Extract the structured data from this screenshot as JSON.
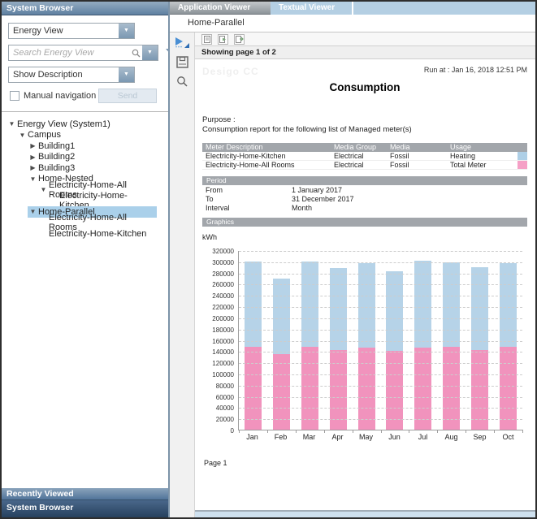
{
  "system_browser": {
    "title": "System Browser",
    "view_dropdown_value": "Energy View",
    "search_placeholder": "Search Energy View",
    "description_dropdown_value": "Show Description",
    "manual_navigation_label": "Manual navigation",
    "send_label": "Send",
    "tree": [
      {
        "label": "Energy View (System1)",
        "level": 0,
        "arrow": "expanded",
        "selected": false
      },
      {
        "label": "Campus",
        "level": 1,
        "arrow": "expanded",
        "selected": false
      },
      {
        "label": "Building1",
        "level": 2,
        "arrow": "collapsed",
        "selected": false
      },
      {
        "label": "Building2",
        "level": 2,
        "arrow": "collapsed",
        "selected": false
      },
      {
        "label": "Building3",
        "level": 2,
        "arrow": "collapsed",
        "selected": false
      },
      {
        "label": "Home-Nested",
        "level": 2,
        "arrow": "expanded",
        "selected": false
      },
      {
        "label": "Electricity-Home-All Rooms",
        "level": 3,
        "arrow": "expanded",
        "selected": false
      },
      {
        "label": "Electricity-Home-Kitchen",
        "level": 4,
        "arrow": "none",
        "selected": false
      },
      {
        "label": "Home-Parallel",
        "level": 2,
        "arrow": "expanded",
        "selected": true
      },
      {
        "label": "Electricity-Home-All Rooms",
        "level": 3,
        "arrow": "none",
        "selected": false
      },
      {
        "label": "Electricity-Home-Kitchen",
        "level": 3,
        "arrow": "none",
        "selected": false
      }
    ],
    "recently_viewed_label": "Recently Viewed",
    "bottom_bar_label": "System Browser"
  },
  "viewer": {
    "tabs": [
      {
        "label": "Application Viewer",
        "active": true
      },
      {
        "label": "Textual Viewer",
        "active": false
      }
    ],
    "breadcrumb": "Home-Parallel",
    "paging_text": "Showing page 1  of  2"
  },
  "report": {
    "logo_text": "Desigo CC",
    "run_at": "Run at : Jan 16, 2018 12:51 PM",
    "title": "Consumption",
    "purpose_label": "Purpose :",
    "purpose_text": "Consumption report for the following list of Managed meter(s)",
    "meter_table": {
      "headers": [
        "Meter Description",
        "Media Group",
        "Media",
        "Usage"
      ],
      "rows": [
        {
          "meter": "Electricity-Home-Kitchen",
          "media_group": "Electrical",
          "media": "Fossil",
          "usage": "Heating",
          "color": "#aecfe6"
        },
        {
          "meter": "Electricity-Home-All Rooms",
          "media_group": "Electrical",
          "media": "Fossil",
          "usage": "Total Meter",
          "color": "#f5a0c6"
        }
      ]
    },
    "period": {
      "header": "Period",
      "rows": [
        {
          "label": "From",
          "value": "1 January 2017"
        },
        {
          "label": "To",
          "value": "31 December 2017"
        },
        {
          "label": "Interval",
          "value": "Month"
        }
      ]
    },
    "graphics_header": "Graphics",
    "unit_label": "kWh",
    "page_label": "Page 1"
  },
  "chart_data": {
    "type": "bar",
    "stacked": true,
    "categories": [
      "Jan",
      "Feb",
      "Mar",
      "Apr",
      "May",
      "Jun",
      "Jul",
      "Aug",
      "Sep",
      "Oct"
    ],
    "series": [
      {
        "name": "Total Meter (Electricity-Home-All Rooms)",
        "color": "#f193bd",
        "values": [
          148000,
          135000,
          148000,
          142000,
          146000,
          141000,
          146000,
          148000,
          142000,
          147000
        ]
      },
      {
        "name": "Heating (Electricity-Home-Kitchen)",
        "color": "#b6d3e8",
        "values": [
          152000,
          135000,
          152000,
          146000,
          151000,
          141000,
          155000,
          150000,
          148000,
          150000
        ]
      }
    ],
    "title": "Consumption",
    "xlabel": "",
    "ylabel": "kWh",
    "ylim": [
      0,
      320000
    ],
    "ytick_step": 20000,
    "grid": "dashed-horizontal",
    "legend_position": "none"
  }
}
